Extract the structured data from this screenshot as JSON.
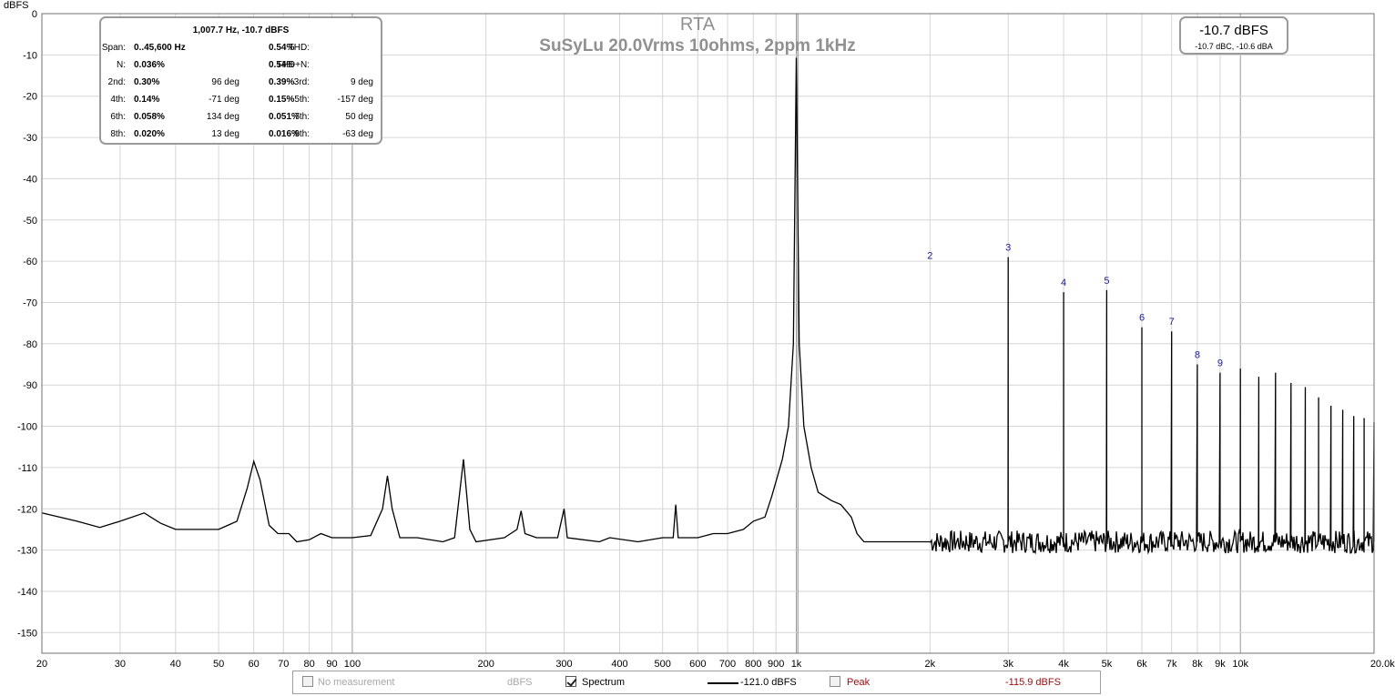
{
  "chart_data": {
    "type": "line",
    "title": "RTA",
    "subtitle": "SuSyLu 20.0Vrms 10ohms, 2ppm 1kHz",
    "ylabel": "dBFS",
    "xlabel": "",
    "x_scale": "log",
    "xlim": [
      20,
      20000
    ],
    "ylim": [
      -155,
      0
    ],
    "grid": true,
    "x_ticks": [
      {
        "v": 20,
        "label": "20"
      },
      {
        "v": 30,
        "label": "30"
      },
      {
        "v": 40,
        "label": "40"
      },
      {
        "v": 50,
        "label": "50"
      },
      {
        "v": 60,
        "label": "60"
      },
      {
        "v": 70,
        "label": "70"
      },
      {
        "v": 80,
        "label": "80"
      },
      {
        "v": 90,
        "label": "90"
      },
      {
        "v": 100,
        "label": "100"
      },
      {
        "v": 200,
        "label": "200"
      },
      {
        "v": 300,
        "label": "300"
      },
      {
        "v": 400,
        "label": "400"
      },
      {
        "v": 500,
        "label": "500"
      },
      {
        "v": 600,
        "label": "600"
      },
      {
        "v": 700,
        "label": "700"
      },
      {
        "v": 800,
        "label": "800"
      },
      {
        "v": 900,
        "label": "900"
      },
      {
        "v": 1000,
        "label": "1k"
      },
      {
        "v": 2000,
        "label": "2k"
      },
      {
        "v": 3000,
        "label": "3k"
      },
      {
        "v": 4000,
        "label": "4k"
      },
      {
        "v": 5000,
        "label": "5k"
      },
      {
        "v": 6000,
        "label": "6k"
      },
      {
        "v": 7000,
        "label": "7k"
      },
      {
        "v": 8000,
        "label": "8k"
      },
      {
        "v": 9000,
        "label": "9k"
      },
      {
        "v": 10000,
        "label": "10k"
      },
      {
        "v": 20000,
        "label": "20.0kHz"
      }
    ],
    "y_ticks": [
      {
        "v": 0,
        "label": "0"
      },
      {
        "v": -10,
        "label": "-10"
      },
      {
        "v": -20,
        "label": "-20"
      },
      {
        "v": -30,
        "label": "-30"
      },
      {
        "v": -40,
        "label": "-40"
      },
      {
        "v": -50,
        "label": "-50"
      },
      {
        "v": -60,
        "label": "-60"
      },
      {
        "v": -70,
        "label": "-70"
      },
      {
        "v": -80,
        "label": "-80"
      },
      {
        "v": -90,
        "label": "-90"
      },
      {
        "v": -100,
        "label": "-100"
      },
      {
        "v": -110,
        "label": "-110"
      },
      {
        "v": -120,
        "label": "-120"
      },
      {
        "v": -130,
        "label": "-130"
      },
      {
        "v": -140,
        "label": "-140"
      },
      {
        "v": -150,
        "label": "-150"
      }
    ],
    "series": [
      {
        "name": "Spectrum",
        "color": "#000000",
        "noise_floor_above_2k": -128,
        "points": [
          [
            20,
            -121
          ],
          [
            24,
            -123
          ],
          [
            27,
            -124.5
          ],
          [
            30,
            -123
          ],
          [
            34,
            -121
          ],
          [
            37,
            -123.5
          ],
          [
            40,
            -125
          ],
          [
            45,
            -125
          ],
          [
            50,
            -125
          ],
          [
            55,
            -123
          ],
          [
            58,
            -115
          ],
          [
            60,
            -108.5
          ],
          [
            62,
            -113
          ],
          [
            65,
            -124
          ],
          [
            68,
            -126
          ],
          [
            72,
            -126
          ],
          [
            75,
            -128
          ],
          [
            80,
            -127.5
          ],
          [
            85,
            -126
          ],
          [
            90,
            -127
          ],
          [
            100,
            -127
          ],
          [
            110,
            -126.5
          ],
          [
            117,
            -120
          ],
          [
            120,
            -112
          ],
          [
            123,
            -120
          ],
          [
            128,
            -127
          ],
          [
            140,
            -127
          ],
          [
            160,
            -128
          ],
          [
            170,
            -127
          ],
          [
            178,
            -108
          ],
          [
            184,
            -125
          ],
          [
            190,
            -128
          ],
          [
            220,
            -127
          ],
          [
            235,
            -125
          ],
          [
            240,
            -120.5
          ],
          [
            245,
            -126
          ],
          [
            260,
            -127
          ],
          [
            290,
            -127
          ],
          [
            300,
            -120
          ],
          [
            305,
            -127
          ],
          [
            360,
            -128
          ],
          [
            380,
            -127
          ],
          [
            440,
            -128
          ],
          [
            500,
            -127
          ],
          [
            528,
            -127
          ],
          [
            535,
            -119
          ],
          [
            542,
            -127
          ],
          [
            600,
            -127
          ],
          [
            650,
            -126
          ],
          [
            700,
            -126
          ],
          [
            760,
            -125
          ],
          [
            800,
            -123
          ],
          [
            850,
            -122
          ],
          [
            880,
            -117
          ],
          [
            930,
            -108
          ],
          [
            960,
            -100
          ],
          [
            985,
            -80
          ],
          [
            1000,
            -10.7
          ],
          [
            1015,
            -80
          ],
          [
            1040,
            -100
          ],
          [
            1080,
            -110
          ],
          [
            1120,
            -116
          ],
          [
            1200,
            -118
          ],
          [
            1260,
            -119
          ],
          [
            1330,
            -122
          ],
          [
            1370,
            -126
          ],
          [
            1420,
            -128
          ],
          [
            1500,
            -128
          ],
          [
            1800,
            -128
          ],
          [
            1999,
            -128
          ]
        ],
        "harmonics": [
          {
            "f": 2000,
            "db": -61
          },
          {
            "f": 3000,
            "db": -59
          },
          {
            "f": 4000,
            "db": -67.5
          },
          {
            "f": 5000,
            "db": -67
          },
          {
            "f": 6000,
            "db": -76
          },
          {
            "f": 7000,
            "db": -77
          },
          {
            "f": 8000,
            "db": -85
          },
          {
            "f": 9000,
            "db": -87
          },
          {
            "f": 10000,
            "db": -86
          },
          {
            "f": 11000,
            "db": -88
          },
          {
            "f": 12000,
            "db": -87
          },
          {
            "f": 13000,
            "db": -89.5
          },
          {
            "f": 14000,
            "db": -90.5
          },
          {
            "f": 15000,
            "db": -93
          },
          {
            "f": 16000,
            "db": -95
          },
          {
            "f": 17000,
            "db": -96
          },
          {
            "f": 18000,
            "db": -97.5
          },
          {
            "f": 19000,
            "db": -98
          },
          {
            "f": 20000,
            "db": -99
          }
        ]
      }
    ],
    "harmonic_labels": [
      {
        "n": "2",
        "f": 2000,
        "db": -61
      },
      {
        "n": "3",
        "f": 3000,
        "db": -59
      },
      {
        "n": "4",
        "f": 4000,
        "db": -67.5
      },
      {
        "n": "5",
        "f": 5000,
        "db": -67
      },
      {
        "n": "6",
        "f": 6000,
        "db": -76
      },
      {
        "n": "7",
        "f": 7000,
        "db": -77
      },
      {
        "n": "8",
        "f": 8000,
        "db": -85
      },
      {
        "n": "9",
        "f": 9000,
        "db": -87
      }
    ],
    "cursor": {
      "f": 1007.7
    }
  },
  "stats": {
    "header": "1,007.7 Hz, -10.7 dBFS",
    "rows": [
      [
        "Span:",
        "0..45,600 Hz",
        "",
        "THD:",
        "0.54%",
        ""
      ],
      [
        "N:",
        "0.036%",
        "",
        "THD+N:",
        "0.54%",
        ""
      ],
      [
        "2nd:",
        "0.30%",
        "96 deg",
        "3rd:",
        "0.39%",
        "9 deg"
      ],
      [
        "4th:",
        "0.14%",
        "-71 deg",
        "5th:",
        "0.15%",
        "-157 deg"
      ],
      [
        "6th:",
        "0.058%",
        "134 deg",
        "7th:",
        "0.051%",
        "50 deg"
      ],
      [
        "8th:",
        "0.020%",
        "13 deg",
        "9th:",
        "0.016%",
        "-63 deg"
      ]
    ]
  },
  "level": {
    "main": "-10.7 dBFS",
    "sub": "-10.7 dBC, -10.6 dBA"
  },
  "legend": {
    "no_measurement": "No measurement",
    "unit": "dBFS",
    "spectrum": "Spectrum",
    "spectrum_value": "-121.0 dBFS",
    "peak": "Peak",
    "peak_value": "-115.9 dBFS",
    "peak_color": "#a01010"
  }
}
